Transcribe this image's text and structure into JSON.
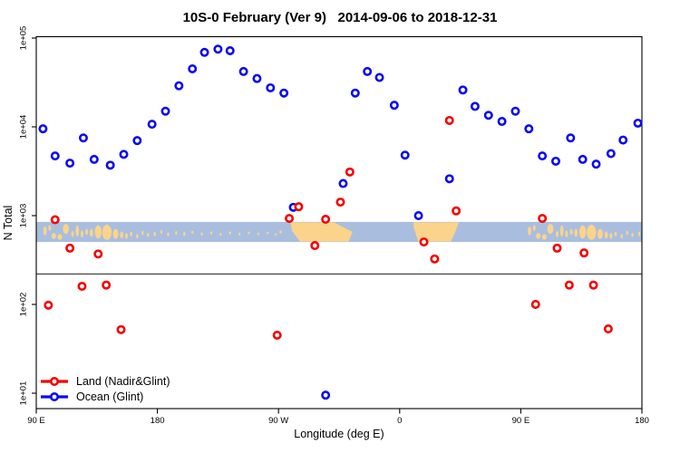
{
  "title": "10S-0 February (Ver 9)   2014-09-06 to 2018-12-31",
  "axes": {
    "y_label": "N Total",
    "x_label": "Longitude (deg E)",
    "y_ticks": [
      "1e+05",
      "1e+04",
      "1e+03",
      "1e+02",
      "1e+01"
    ],
    "x_ticks": [
      "90 E",
      "180",
      "90 W",
      "0",
      "90 E",
      "180"
    ]
  },
  "legend": {
    "items": [
      {
        "label": "Land (Nadir&Glint)",
        "color": "#f40000"
      },
      {
        "label": "Ocean (Glint)",
        "color": "#0b0bf2"
      }
    ]
  },
  "chart_data": {
    "type": "scatter",
    "title": "10S-0 February (Ver 9)   2014-09-06 to 2018-12-31",
    "xlabel": "Longitude (deg E)",
    "ylabel": "N Total",
    "x_axis": {
      "range_deg": [
        90,
        540
      ],
      "ticks_deg": [
        90,
        180,
        270,
        360,
        450,
        540
      ],
      "tick_labels": [
        "90 E",
        "180",
        "90 W",
        "0",
        "90 E",
        "180"
      ]
    },
    "y_axis": {
      "scale": "log10",
      "range": [
        7,
        105000
      ],
      "ticks": [
        100000,
        10000,
        1000,
        100,
        10
      ],
      "tick_labels": [
        "1e+05",
        "1e+04",
        "1e+03",
        "1e+02",
        "1e+01"
      ]
    },
    "reference_line_value": 220,
    "map_band": {
      "value_top": 850,
      "value_bottom": 505,
      "ocean_color": "#a9bede",
      "land_color": "#fcd38a",
      "repeat_shift_deg": 360,
      "repeat_max_lon": 182,
      "landmasses": {
        "south_america": [
          [
            279,
            0.02
          ],
          [
            311,
            0.02
          ],
          [
            325,
            0.5
          ],
          [
            322,
            0.98
          ],
          [
            286,
            0.98
          ],
          [
            280,
            0.45
          ]
        ],
        "africa": [
          [
            370,
            0.02
          ],
          [
            404,
            0.02
          ],
          [
            401,
            0.55
          ],
          [
            398,
            0.98
          ],
          [
            374,
            0.98
          ],
          [
            370.5,
            0.3
          ]
        ]
      },
      "islands": [
        [
          96.5,
          0.45,
          2.5,
          0.45
        ],
        [
          100,
          0.3,
          2,
          0.3
        ],
        [
          103,
          0.7,
          3.5,
          0.3
        ],
        [
          107.5,
          0.75,
          3.5,
          0.28
        ],
        [
          112,
          0.35,
          4.5,
          0.5
        ],
        [
          117,
          0.6,
          2,
          0.3
        ],
        [
          120.5,
          0.45,
          2.5,
          0.55
        ],
        [
          124,
          0.6,
          2,
          0.35
        ],
        [
          127.5,
          0.5,
          2,
          0.3
        ],
        [
          131,
          0.55,
          2.5,
          0.4
        ],
        [
          136,
          0.5,
          5,
          0.65
        ],
        [
          142.5,
          0.52,
          7,
          0.75
        ],
        [
          149,
          0.6,
          4,
          0.5
        ],
        [
          153.5,
          0.65,
          2.5,
          0.35
        ],
        [
          157,
          0.7,
          2,
          0.3
        ],
        [
          160.5,
          0.6,
          1.8,
          0.25
        ],
        [
          165,
          0.72,
          1.5,
          0.22
        ],
        [
          169,
          0.55,
          1.3,
          0.2
        ],
        [
          173,
          0.65,
          1.3,
          0.2
        ],
        [
          178,
          0.6,
          1.5,
          0.22
        ],
        [
          183,
          0.5,
          1.2,
          0.18
        ],
        [
          188,
          0.62,
          1.2,
          0.18
        ],
        [
          194,
          0.55,
          1.3,
          0.18
        ],
        [
          200,
          0.6,
          1.5,
          0.2
        ],
        [
          206,
          0.52,
          1,
          0.15
        ],
        [
          213,
          0.6,
          1,
          0.15
        ],
        [
          220,
          0.55,
          1,
          0.15
        ],
        [
          227,
          0.62,
          1,
          0.14
        ],
        [
          234,
          0.55,
          1,
          0.14
        ],
        [
          241,
          0.6,
          1,
          0.13
        ],
        [
          248,
          0.55,
          0.9,
          0.13
        ],
        [
          255,
          0.6,
          0.9,
          0.13
        ],
        [
          262,
          0.55,
          0.9,
          0.12
        ],
        [
          268,
          0.62,
          0.9,
          0.12
        ],
        [
          271.5,
          0.5,
          0.9,
          0.15
        ]
      ]
    },
    "series": [
      {
        "name": "Land (Nadir&Glint)",
        "color": "#f40000",
        "marker": "open-circle",
        "points": [
          [
            104,
            900
          ],
          [
            99,
            98
          ],
          [
            115,
            430
          ],
          [
            124,
            160
          ],
          [
            136,
            370
          ],
          [
            142,
            165
          ],
          [
            153,
            52
          ],
          [
            269,
            45
          ],
          [
            278,
            930
          ],
          [
            285,
            1260
          ],
          [
            297,
            460
          ],
          [
            305,
            910
          ],
          [
            316,
            1420
          ],
          [
            323,
            3100
          ],
          [
            378,
            505
          ],
          [
            386,
            325
          ],
          [
            397,
            11800
          ],
          [
            402,
            1130
          ],
          [
            461,
            100
          ],
          [
            466,
            930
          ],
          [
            477,
            430
          ],
          [
            486,
            165
          ],
          [
            497,
            380
          ],
          [
            504,
            165
          ],
          [
            515,
            53
          ]
        ]
      },
      {
        "name": "Ocean (Glint)",
        "color": "#0b0bf2",
        "marker": "open-circle",
        "points": [
          [
            95,
            9500
          ],
          [
            104,
            4700
          ],
          [
            115,
            3900
          ],
          [
            125,
            7500
          ],
          [
            133,
            4300
          ],
          [
            145,
            3700
          ],
          [
            155,
            4900
          ],
          [
            165,
            7000
          ],
          [
            176,
            10700
          ],
          [
            186,
            15000
          ],
          [
            196,
            29000
          ],
          [
            206,
            45000
          ],
          [
            215,
            69000
          ],
          [
            225,
            75000
          ],
          [
            234,
            72000
          ],
          [
            244,
            42000
          ],
          [
            254,
            35000
          ],
          [
            264,
            27500
          ],
          [
            274,
            24000
          ],
          [
            281,
            1240
          ],
          [
            305,
            9.5
          ],
          [
            318,
            2300
          ],
          [
            327,
            24000
          ],
          [
            336,
            42000
          ],
          [
            345,
            36000
          ],
          [
            356,
            17500
          ],
          [
            364,
            4800
          ],
          [
            374,
            1000
          ],
          [
            397,
            2600
          ],
          [
            407,
            26000
          ],
          [
            416,
            17000
          ],
          [
            426,
            13500
          ],
          [
            436,
            11500
          ],
          [
            446,
            15000
          ],
          [
            456,
            9500
          ],
          [
            466,
            4700
          ],
          [
            476,
            4100
          ],
          [
            487,
            7500
          ],
          [
            496,
            4300
          ],
          [
            506,
            3800
          ],
          [
            517,
            5000
          ],
          [
            526,
            7100
          ],
          [
            537,
            11000
          ]
        ]
      }
    ]
  }
}
